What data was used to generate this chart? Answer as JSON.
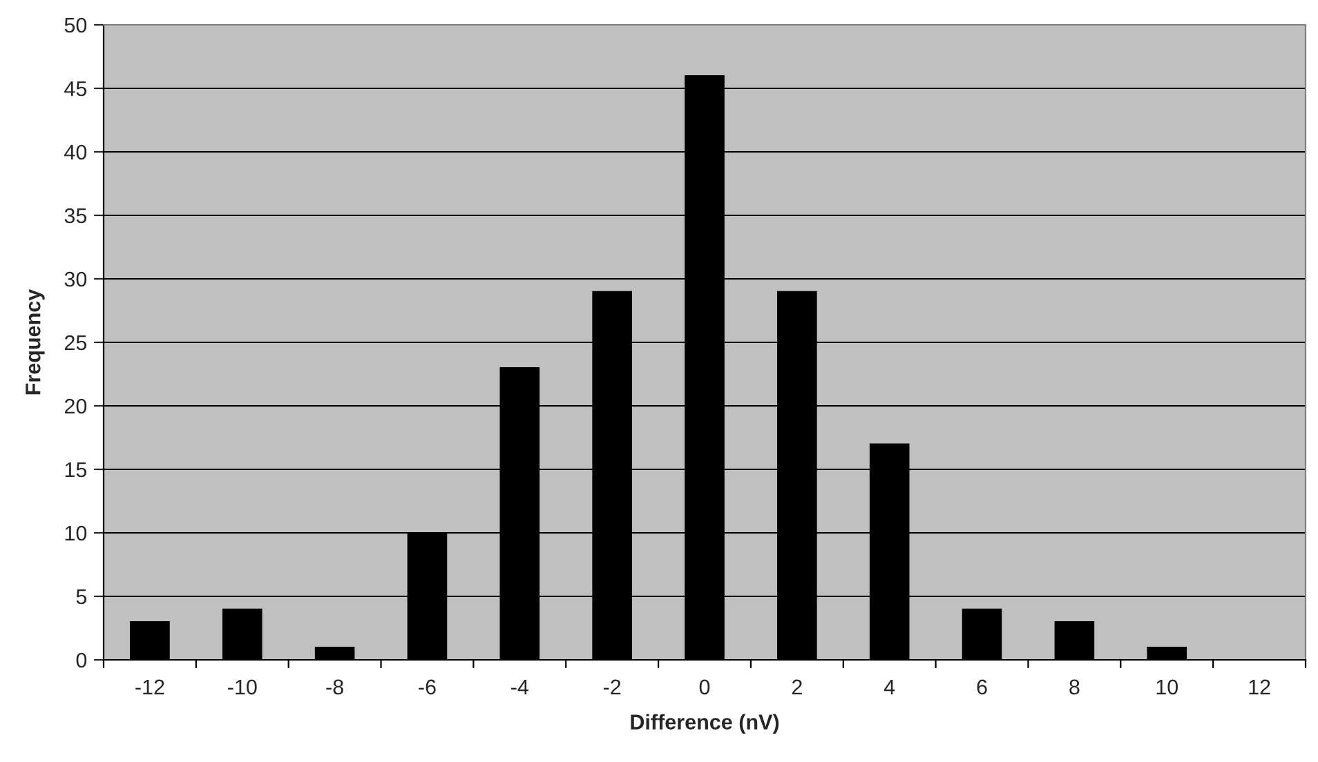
{
  "chart_data": {
    "type": "bar",
    "xlabel": "Difference (nV)",
    "ylabel": "Frequency",
    "categories": [
      "-12",
      "-10",
      "-8",
      "-6",
      "-4",
      "-2",
      "0",
      "2",
      "4",
      "6",
      "8",
      "10",
      "12"
    ],
    "values": [
      3,
      4,
      1,
      10,
      23,
      29,
      46,
      29,
      17,
      4,
      3,
      1,
      0
    ],
    "color": "#000000",
    "ylim": [
      0,
      50
    ],
    "yticks": [
      0,
      5,
      10,
      15,
      20,
      25,
      30,
      35,
      40,
      45,
      50
    ],
    "grid": "y",
    "legend": false
  }
}
